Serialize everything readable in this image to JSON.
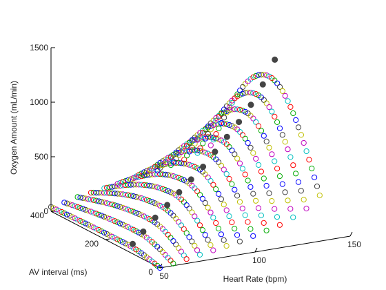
{
  "chart_data": {
    "type": "scatter3d",
    "title": "",
    "xlabel": "Heart Rate (bpm)",
    "ylabel": "AV interval (ms)",
    "zlabel": "Oxygen Amount (mL/min)",
    "xlim": [
      50,
      150
    ],
    "ylim": [
      0,
      400
    ],
    "zlim": [
      0,
      1500
    ],
    "xticks": [
      "50",
      "100",
      "150"
    ],
    "yticks": [
      "0",
      "200",
      "400"
    ],
    "zticks": [
      "0",
      "500",
      "1000",
      "1500"
    ],
    "grid": false,
    "legend": "none",
    "marker_colors": [
      "#0000ff",
      "#00aa00",
      "#ff0000",
      "#00bfbf",
      "#bf00bf",
      "#bfbf00",
      "#404040"
    ],
    "peak_marker_color": "#444444",
    "series": [
      {
        "heart_rate": 50,
        "av_interval": [
          0,
          400
        ],
        "oxygen_start": 0,
        "oxygen_peak": 60,
        "oxygen_end": 40,
        "peak_av": 120,
        "peak_marker": {
          "av_interval": 100,
          "oxygen": 90
        }
      },
      {
        "heart_rate": 57,
        "av_interval": [
          0,
          400
        ],
        "oxygen_start": 20,
        "oxygen_peak": 140,
        "oxygen_end": 60,
        "peak_av": 130,
        "peak_marker": {
          "av_interval": 110,
          "oxygen": 170
        }
      },
      {
        "heart_rate": 64,
        "av_interval": [
          0,
          400
        ],
        "oxygen_start": 40,
        "oxygen_peak": 230,
        "oxygen_end": 90,
        "peak_av": 135,
        "peak_marker": {
          "av_interval": 115,
          "oxygen": 270
        }
      },
      {
        "heart_rate": 71,
        "av_interval": [
          0,
          400
        ],
        "oxygen_start": 60,
        "oxygen_peak": 320,
        "oxygen_end": 110,
        "peak_av": 140,
        "peak_marker": {
          "av_interval": 120,
          "oxygen": 360
        }
      },
      {
        "heart_rate": 78,
        "av_interval": [
          0,
          400
        ],
        "oxygen_start": 80,
        "oxygen_peak": 410,
        "oxygen_end": 130,
        "peak_av": 145,
        "peak_marker": {
          "av_interval": 125,
          "oxygen": 450
        }
      },
      {
        "heart_rate": 85,
        "av_interval": [
          0,
          400
        ],
        "oxygen_start": 100,
        "oxygen_peak": 500,
        "oxygen_end": 150,
        "peak_av": 150,
        "peak_marker": {
          "av_interval": 130,
          "oxygen": 540
        }
      },
      {
        "heart_rate": 92,
        "av_interval": [
          0,
          400
        ],
        "oxygen_start": 120,
        "oxygen_peak": 590,
        "oxygen_end": 170,
        "peak_av": 155,
        "peak_marker": {
          "av_interval": 135,
          "oxygen": 630
        }
      },
      {
        "heart_rate": 99,
        "av_interval": [
          0,
          400
        ],
        "oxygen_start": 150,
        "oxygen_peak": 690,
        "oxygen_end": 190,
        "peak_av": 160,
        "peak_marker": {
          "av_interval": 140,
          "oxygen": 740
        }
      },
      {
        "heart_rate": 106,
        "av_interval": [
          0,
          400
        ],
        "oxygen_start": 180,
        "oxygen_peak": 790,
        "oxygen_end": 210,
        "peak_av": 165,
        "peak_marker": {
          "av_interval": 145,
          "oxygen": 850
        }
      },
      {
        "heart_rate": 113,
        "av_interval": [
          0,
          400
        ],
        "oxygen_start": 210,
        "oxygen_peak": 890,
        "oxygen_end": 240,
        "peak_av": 170,
        "peak_marker": {
          "av_interval": 150,
          "oxygen": 960
        }
      },
      {
        "heart_rate": 120,
        "av_interval": [
          0,
          400
        ],
        "oxygen_start": 260,
        "oxygen_peak": 1000,
        "oxygen_end": 270,
        "peak_av": 175,
        "peak_marker": {
          "av_interval": 155,
          "oxygen": 1090
        }
      },
      {
        "heart_rate": 127,
        "av_interval": [
          0,
          400
        ],
        "oxygen_start": 320,
        "oxygen_peak": 1130,
        "oxygen_end": 310,
        "peak_av": 180,
        "peak_marker": {
          "av_interval": 160,
          "oxygen": 1250
        }
      },
      {
        "heart_rate": 134,
        "av_interval": [
          0,
          400
        ],
        "oxygen_start": 420,
        "oxygen_peak": 1270,
        "oxygen_end": 360,
        "peak_av": 185,
        "peak_marker": {
          "av_interval": 165,
          "oxygen": 1450
        }
      }
    ]
  }
}
